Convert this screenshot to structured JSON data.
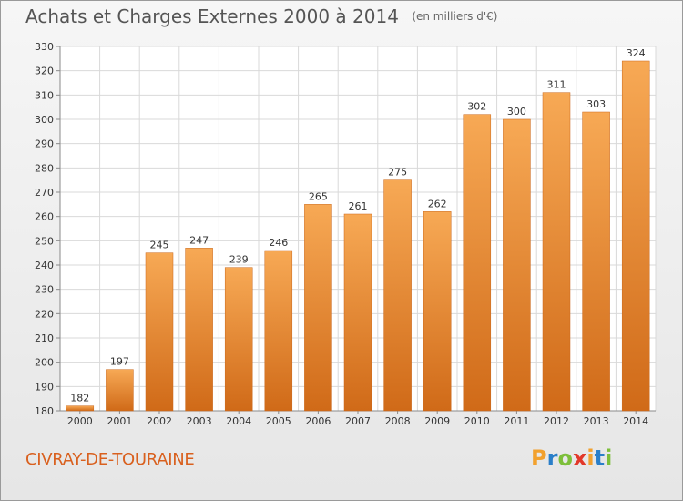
{
  "title": "Achats et Charges Externes 2000 à 2014",
  "subtitle": "(en milliers d'€)",
  "place": "CIVRAY-DE-TOURAINE",
  "logo": {
    "text": "Proxiti",
    "letters": [
      "P",
      "r",
      "o",
      "x",
      "i",
      "t",
      "i"
    ],
    "colors": [
      "#f2a12e",
      "#2a7fc9",
      "#7dbf3a",
      "#e2382a",
      "#f2a12e",
      "#2a7fc9",
      "#7dbf3a"
    ]
  },
  "colors": {
    "bar_light": "#f7a955",
    "bar_dark": "#d8741f",
    "grid": "#d9d9d9",
    "axis": "#8a8a8a",
    "title": "#555555",
    "place": "#d9601e"
  },
  "chart_data": {
    "type": "bar",
    "title": "Achats et Charges Externes 2000 à 2014",
    "subtitle": "(en milliers d'€)",
    "xlabel": "",
    "ylabel": "",
    "categories": [
      "2000",
      "2001",
      "2002",
      "2003",
      "2004",
      "2005",
      "2006",
      "2007",
      "2008",
      "2009",
      "2010",
      "2011",
      "2012",
      "2013",
      "2014"
    ],
    "values": [
      182,
      197,
      245,
      247,
      239,
      246,
      265,
      261,
      275,
      262,
      302,
      300,
      311,
      303,
      324
    ],
    "ylim": [
      180,
      330
    ],
    "yticks": [
      180,
      190,
      200,
      210,
      220,
      230,
      240,
      250,
      260,
      270,
      280,
      290,
      300,
      310,
      320,
      330
    ],
    "grid": true
  }
}
